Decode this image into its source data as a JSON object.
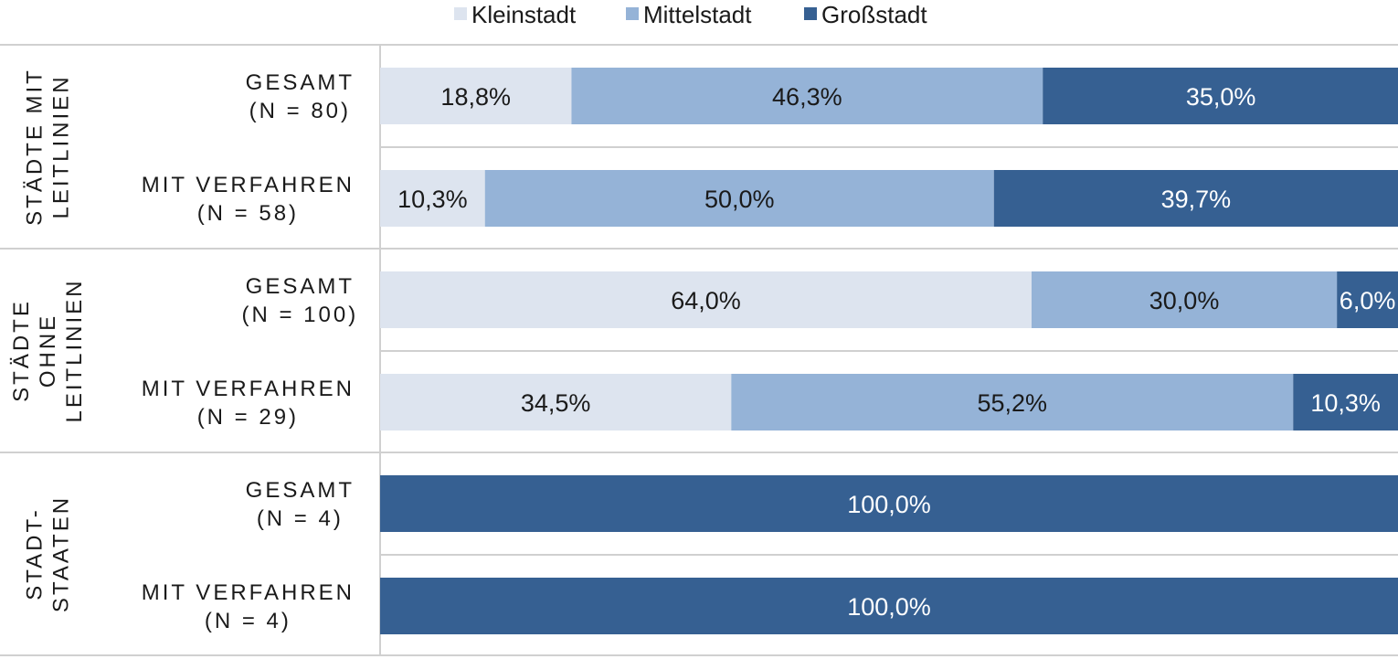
{
  "chart_data": {
    "type": "bar",
    "orientation": "horizontal",
    "stacked": "percent",
    "xlim": [
      0,
      100
    ],
    "legend_position": "top",
    "series": [
      {
        "name": "Kleinstadt",
        "color": "#dde4ef",
        "label_color": "#1a1a1a",
        "values": [
          18.8,
          10.3,
          64.0,
          34.5,
          0,
          0
        ]
      },
      {
        "name": "Mittelstadt",
        "color": "#95b3d7",
        "label_color": "#1a1a1a",
        "values": [
          46.3,
          50.0,
          30.0,
          55.2,
          0,
          0
        ]
      },
      {
        "name": "Großstadt",
        "color": "#366092",
        "label_color": "#ffffff",
        "values": [
          35.0,
          39.7,
          6.0,
          10.3,
          100.0,
          100.0
        ]
      }
    ],
    "data_labels": [
      [
        "18,8%",
        "46,3%",
        "35,0%"
      ],
      [
        "10,3%",
        "50,0%",
        "39,7%"
      ],
      [
        "64,0%",
        "30,0%",
        "6,0%"
      ],
      [
        "34,5%",
        "55,2%",
        "10,3%"
      ],
      [
        "",
        "",
        "100,0%"
      ],
      [
        "",
        "",
        "100,0%"
      ]
    ],
    "categories": [
      [
        "GESAMT",
        "(N = 80)"
      ],
      [
        "MIT VERFAHREN",
        "(N = 58)"
      ],
      [
        "GESAMT",
        "(N = 100)"
      ],
      [
        "MIT VERFAHREN",
        "(N = 29)"
      ],
      [
        "GESAMT",
        "(N = 4)"
      ],
      [
        "MIT VERFAHREN",
        "(N = 4)"
      ]
    ],
    "groups": [
      {
        "label": [
          "STÄDTE MIT",
          "LEITLINIEN"
        ],
        "rows": [
          0,
          1
        ]
      },
      {
        "label": [
          "STÄDTE",
          "OHNE",
          "LEITLINIEN"
        ],
        "rows": [
          2,
          3
        ]
      },
      {
        "label": [
          "STADT-",
          "STAATEN"
        ],
        "rows": [
          4,
          5
        ]
      }
    ]
  }
}
